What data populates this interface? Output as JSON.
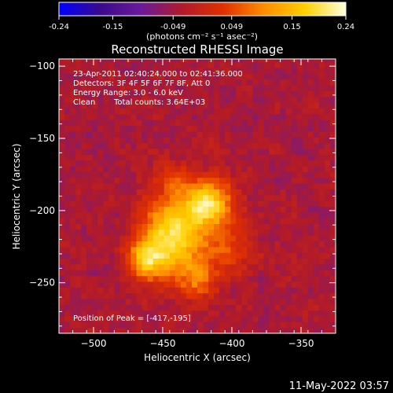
{
  "chart_data": {
    "type": "heatmap",
    "title": "Reconstructed RHESSI Image",
    "xlabel": "Heliocentric X (arcsec)",
    "ylabel": "Heliocentric Y (arcsec)",
    "xlim": [
      -525,
      -325
    ],
    "ylim": [
      -285,
      -95
    ],
    "x_ticks": [
      -500,
      -450,
      -400,
      -350
    ],
    "y_ticks": [
      -100,
      -150,
      -200,
      -250
    ],
    "colorbar": {
      "range": [
        -0.24,
        0.24
      ],
      "ticks": [
        -0.24,
        -0.15,
        -0.049,
        0.049,
        0.15,
        0.24
      ],
      "tick_labels": [
        "-0.24",
        "-0.15",
        "-0.049",
        "0.049",
        "0.15",
        "0.24"
      ],
      "units_label": "(photons cm⁻² s⁻¹ asec⁻²)",
      "colormap": [
        "#0000ff",
        "#3a0a8c",
        "#6a1a9a",
        "#b01a2a",
        "#e03000",
        "#ff8c00",
        "#ffd000",
        "#ffffe0"
      ]
    },
    "sources": [
      {
        "x": -417,
        "y": -195,
        "peak": 0.24,
        "sigma": 12
      },
      {
        "x": -445,
        "y": -210,
        "peak": 0.17,
        "sigma": 14
      },
      {
        "x": -462,
        "y": -233,
        "peak": 0.19,
        "sigma": 10
      },
      {
        "x": -437,
        "y": -230,
        "peak": 0.12,
        "sigma": 16
      },
      {
        "x": -425,
        "y": -248,
        "peak": 0.09,
        "sigma": 10
      },
      {
        "x": -445,
        "y": -178,
        "peak": 0.08,
        "sigma": 10
      },
      {
        "x": -400,
        "y": -225,
        "peak": 0.07,
        "sigma": 12
      }
    ],
    "background_level": -0.04,
    "annotations": {
      "time_range": "23-Apr-2011 02:40:24.000 to 02:41:36.000",
      "detectors": "Detectors: 3F 4F 5F 6F 7F 8F, Att 0",
      "energy": "Energy Range: 3.0 - 6.0 keV",
      "clean": "Clean",
      "total_counts": "Total counts: 3.64E+03",
      "peak_position": "Position of Peak = [-417,-195]"
    }
  },
  "footer": {
    "timestamp": "11-May-2022 03:57"
  }
}
